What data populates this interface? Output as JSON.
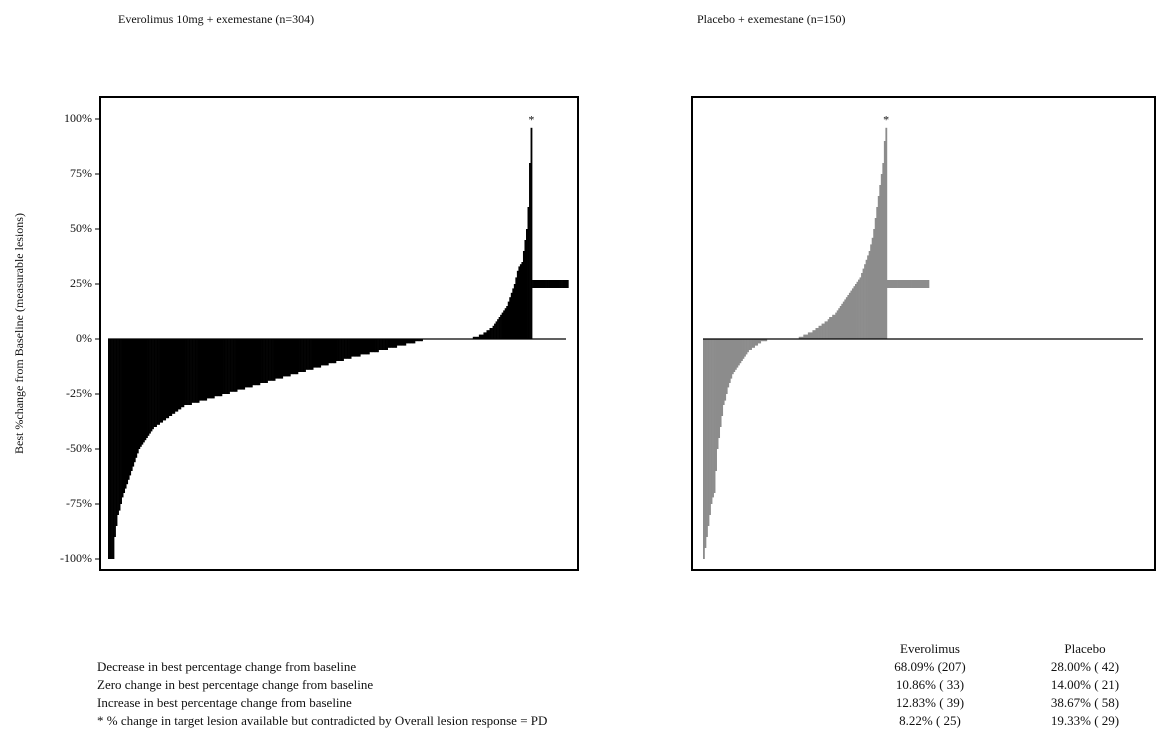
{
  "chart_data": [
    {
      "type": "waterfall",
      "title": "Everolimus 10mg + exemestane (n=304)",
      "y_label": "Best %change from Baseline (measurable lesions)",
      "ylim": [
        -105,
        110
      ],
      "yticks": [
        {
          "value": 100,
          "label": "100%"
        },
        {
          "value": 75,
          "label": "75%"
        },
        {
          "value": 50,
          "label": "50%"
        },
        {
          "value": 25,
          "label": "25%"
        },
        {
          "value": 0,
          "label": "0%"
        },
        {
          "value": -25,
          "label": "-25%"
        },
        {
          "value": -50,
          "label": "-50%"
        },
        {
          "value": -75,
          "label": "-75%"
        },
        {
          "value": -100,
          "label": "-100%"
        }
      ],
      "color": "#000000",
      "annotation": "*",
      "values": [
        -100,
        -100,
        -100,
        -100,
        -90,
        -85,
        -80,
        -78,
        -75,
        -72,
        -70,
        -68,
        -66,
        -64,
        -62,
        -60,
        -58,
        -56,
        -54,
        -52,
        -50,
        -49,
        -48,
        -47,
        -46,
        -45,
        -44,
        -43,
        -42,
        -41,
        -40,
        -40,
        -39,
        -39,
        -38,
        -38,
        -37,
        -37,
        -36,
        -36,
        -35,
        -35,
        -34,
        -34,
        -33,
        -33,
        -32,
        -32,
        -31,
        -31,
        -30,
        -30,
        -30,
        -30,
        -30,
        -29,
        -29,
        -29,
        -29,
        -29,
        -28,
        -28,
        -28,
        -28,
        -28,
        -27,
        -27,
        -27,
        -27,
        -27,
        -26,
        -26,
        -26,
        -26,
        -26,
        -25,
        -25,
        -25,
        -25,
        -25,
        -24,
        -24,
        -24,
        -24,
        -24,
        -23,
        -23,
        -23,
        -23,
        -23,
        -22,
        -22,
        -22,
        -22,
        -22,
        -21,
        -21,
        -21,
        -21,
        -21,
        -20,
        -20,
        -20,
        -20,
        -20,
        -19,
        -19,
        -19,
        -19,
        -19,
        -18,
        -18,
        -18,
        -18,
        -18,
        -17,
        -17,
        -17,
        -17,
        -17,
        -16,
        -16,
        -16,
        -16,
        -16,
        -15,
        -15,
        -15,
        -15,
        -15,
        -14,
        -14,
        -14,
        -14,
        -14,
        -13,
        -13,
        -13,
        -13,
        -13,
        -12,
        -12,
        -12,
        -12,
        -12,
        -11,
        -11,
        -11,
        -11,
        -11,
        -10,
        -10,
        -10,
        -10,
        -10,
        -9,
        -9,
        -9,
        -9,
        -9,
        -8,
        -8,
        -8,
        -8,
        -8,
        -8,
        -7,
        -7,
        -7,
        -7,
        -7,
        -7,
        -6,
        -6,
        -6,
        -6,
        -6,
        -6,
        -5,
        -5,
        -5,
        -5,
        -5,
        -5,
        -4,
        -4,
        -4,
        -4,
        -4,
        -4,
        -3,
        -3,
        -3,
        -3,
        -3,
        -3,
        -2,
        -2,
        -2,
        -2,
        -2,
        -2,
        -1,
        -1,
        -1,
        -1,
        -1,
        0,
        0,
        0,
        0,
        0,
        0,
        0,
        0,
        0,
        0,
        0,
        0,
        0,
        0,
        0,
        0,
        0,
        0,
        0,
        0,
        0,
        0,
        0,
        0,
        0,
        0,
        0,
        0,
        0,
        0,
        0,
        0,
        0,
        1,
        1,
        1,
        1,
        2,
        2,
        2,
        3,
        3,
        4,
        4,
        5,
        5,
        6,
        7,
        8,
        9,
        10,
        11,
        12,
        13,
        14,
        15,
        17,
        19,
        21,
        23,
        25,
        28,
        31,
        33,
        34,
        35,
        40,
        45,
        50,
        60,
        80,
        96
      ],
      "pd_values": [
        25,
        25,
        25,
        25,
        25,
        25,
        25,
        25,
        25,
        25,
        25,
        25,
        25,
        25,
        25,
        25,
        25,
        25,
        25,
        25,
        25,
        25,
        25,
        25,
        25
      ]
    },
    {
      "type": "waterfall",
      "title": "Placebo + exemestane (n=150)",
      "ylim": [
        -105,
        110
      ],
      "color": "#8c8c8c",
      "annotation": "*",
      "values": [
        -100,
        -95,
        -90,
        -85,
        -80,
        -75,
        -72,
        -70,
        -60,
        -50,
        -45,
        -40,
        -35,
        -30,
        -28,
        -25,
        -22,
        -20,
        -18,
        -16,
        -15,
        -14,
        -13,
        -12,
        -11,
        -10,
        -9,
        -8,
        -7,
        -6,
        -5,
        -5,
        -4,
        -4,
        -3,
        -3,
        -2,
        -2,
        -1,
        -1,
        -1,
        -1,
        0,
        0,
        0,
        0,
        0,
        0,
        0,
        0,
        0,
        0,
        0,
        0,
        0,
        0,
        0,
        0,
        0,
        0,
        0,
        0,
        0,
        1,
        1,
        1,
        2,
        2,
        2,
        3,
        3,
        3,
        4,
        4,
        5,
        5,
        6,
        6,
        7,
        7,
        8,
        8,
        9,
        10,
        10,
        11,
        11,
        12,
        13,
        14,
        15,
        16,
        17,
        18,
        19,
        20,
        21,
        22,
        23,
        24,
        25,
        26,
        27,
        28,
        30,
        32,
        34,
        36,
        38,
        40,
        43,
        46,
        50,
        55,
        60,
        65,
        70,
        75,
        80,
        90,
        96
      ],
      "pd_values": [
        25,
        25,
        25,
        25,
        25,
        25,
        25,
        25,
        25,
        25,
        25,
        25,
        25,
        25,
        25,
        25,
        25,
        25,
        25,
        25,
        25,
        25,
        25,
        25,
        25,
        25,
        25,
        25,
        25
      ]
    }
  ],
  "table": {
    "columns": [
      "Everolimus",
      "Placebo"
    ],
    "rows": [
      [
        "Decrease in best percentage change from baseline",
        "68.09% (207)",
        "28.00% ( 42)"
      ],
      [
        "Zero change in best percentage change from baseline",
        "10.86% ( 33)",
        "14.00% ( 21)"
      ],
      [
        "Increase in best percentage change from baseline",
        "12.83% ( 39)",
        "38.67% ( 58)"
      ],
      [
        "* % change in target lesion available but contradicted by Overall lesion response = PD",
        "8.22% ( 25)",
        "19.33% ( 29)"
      ]
    ]
  }
}
